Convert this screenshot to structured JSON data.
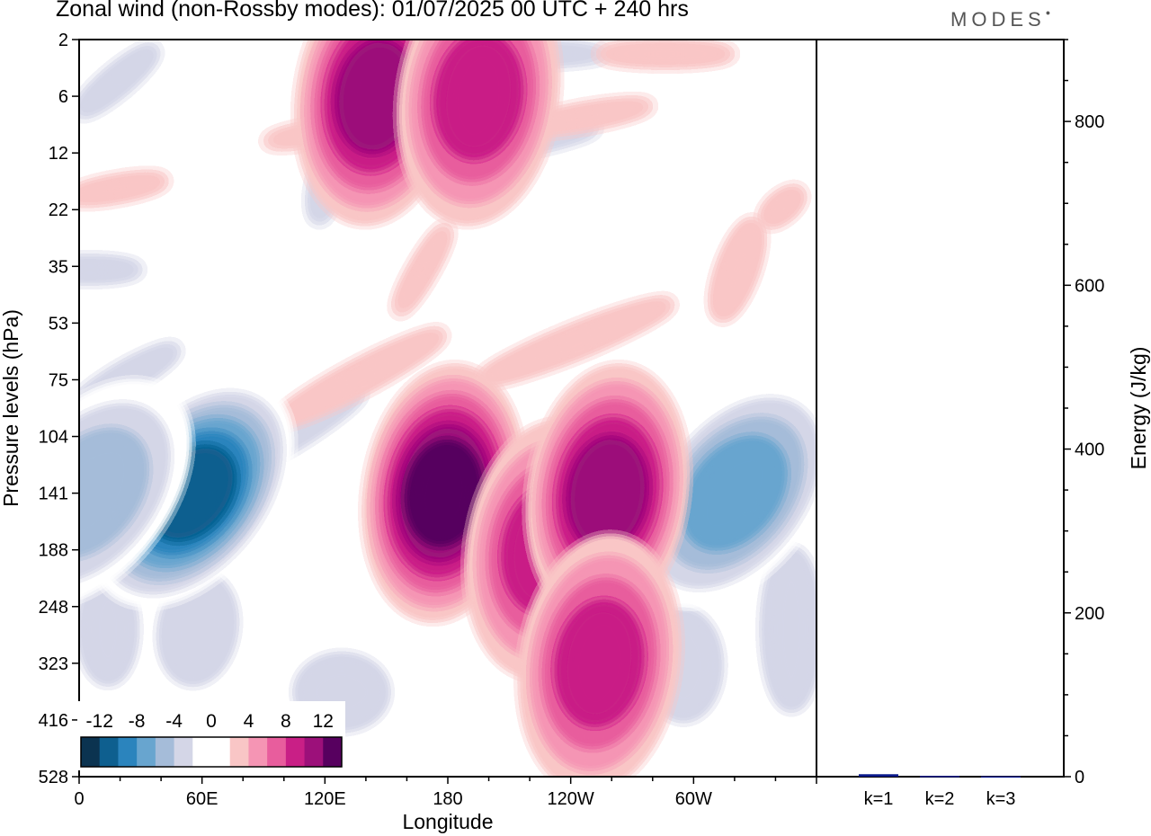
{
  "header": {
    "title": "Zonal wind (non-Rossby modes):  01/07/2025  00 UTC  + 240 hrs",
    "brand": "MODES"
  },
  "chart_data": [
    {
      "type": "heatmap",
      "title": "Zonal wind (non-Rossby modes):  01/07/2025  00 UTC  + 240 hrs",
      "xlabel": "Longitude",
      "ylabel": "Pressure levels (hPa)",
      "x_ticks": [
        "0",
        "60E",
        "120E",
        "180",
        "120W",
        "60W"
      ],
      "y_ticks": [
        "2",
        "6",
        "12",
        "22",
        "35",
        "53",
        "75",
        "104",
        "141",
        "188",
        "248",
        "323",
        "416",
        "528"
      ],
      "colorbar": {
        "tick_labels": [
          "-12",
          "-8",
          "-4",
          "0",
          "4",
          "8",
          "12"
        ],
        "colors": [
          "#0b3350",
          "#0e5f8f",
          "#2b84bd",
          "#68a5cf",
          "#a5bcd9",
          "#d4d6e7",
          "#ffffff",
          "#ffffff",
          "#f9c6c6",
          "#f595b4",
          "#e85d9d",
          "#c91f86",
          "#9c107a",
          "#57005f"
        ]
      },
      "features": [
        {
          "lon": 55,
          "level": "141",
          "value": -12
        },
        {
          "lon": 5,
          "level": "141",
          "value": -6
        },
        {
          "lon": 320,
          "level": "141",
          "value": -7
        },
        {
          "lon": 178,
          "level": "141",
          "value": 12
        },
        {
          "lon": 145,
          "level": "6",
          "value": 9
        },
        {
          "lon": 195,
          "level": "6",
          "value": 7
        },
        {
          "lon": 228,
          "level": "188",
          "value": 8
        },
        {
          "lon": 258,
          "level": "141",
          "value": 9
        },
        {
          "lon": 254,
          "level": "323",
          "value": 8
        }
      ]
    },
    {
      "type": "bar",
      "categories": [
        "k=1",
        "k=2",
        "k=3"
      ],
      "values": [
        3,
        1,
        0.5
      ],
      "ylabel": "Energy (J/kg)",
      "ylim": [
        0,
        900
      ],
      "y_ticks": [
        0,
        200,
        400,
        600,
        800
      ],
      "color": "#0a1a8c"
    }
  ]
}
